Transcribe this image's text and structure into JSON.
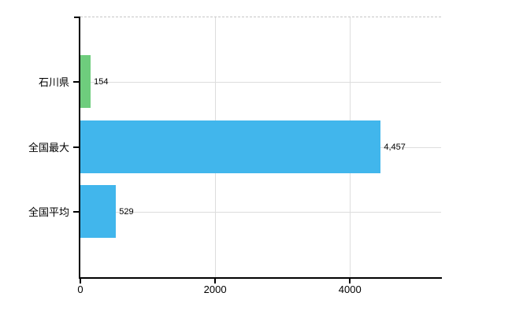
{
  "chart_data": {
    "type": "bar",
    "orientation": "horizontal",
    "title": "",
    "xlabel": "",
    "ylabel": "",
    "categories": [
      "石川県",
      "全国最大",
      "全国平均"
    ],
    "values": [
      154,
      4457,
      529
    ],
    "value_labels": [
      "154",
      "4,457",
      "529"
    ],
    "bar_colors": [
      "#6ecd7d",
      "#41b6ec",
      "#41b6ec"
    ],
    "xlim": [
      0,
      5353
    ],
    "xticks": [
      0,
      2000,
      4000
    ],
    "xtick_labels": [
      "0",
      "2000",
      "4000"
    ],
    "grid": true,
    "legend_position": "none",
    "colors": {
      "grid": "#dddddd",
      "top_border": "#c6c6c6",
      "axis": "#000000",
      "text": "#000000",
      "background": "#ffffff"
    }
  }
}
